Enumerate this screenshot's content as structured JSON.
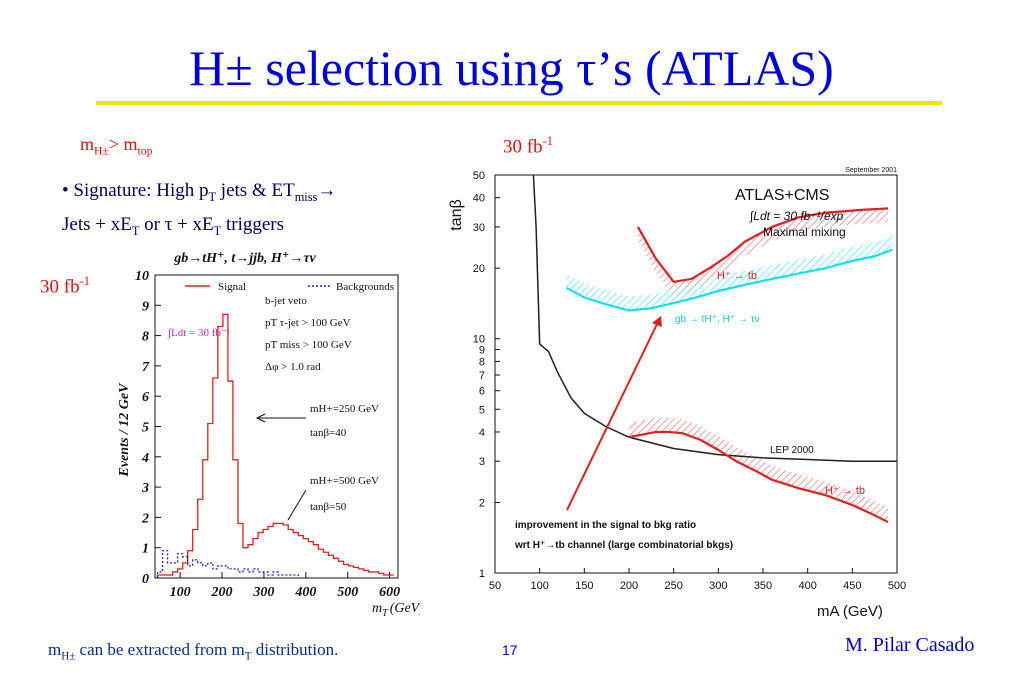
{
  "slide": {
    "title": "H± selection using τ’s (ATLAS)",
    "condition": {
      "m_sub": "H±",
      "gt": "> m",
      "top_sub": "top"
    },
    "signature": {
      "line1_a": "• Signature: High p",
      "line1_b": "T",
      "line1_c": " jets & ET",
      "line1_d": "miss",
      "line1_e": "→",
      "line2_a": "Jets + xE",
      "line2_b": "T",
      "line2_c": " or  τ + xE",
      "line2_d": "T",
      "line2_e": " triggers"
    },
    "lumi_left": {
      "text": "30 fb",
      "sup": "-1"
    },
    "lumi_right": {
      "text": "30 fb",
      "sup": "-1"
    },
    "footer": {
      "a": "m",
      "b": "H±",
      "c": " can be extracted from m",
      "d": "T",
      "e": " distribution."
    },
    "page_number": "17",
    "author": "M. Pilar Casado"
  },
  "left_plot": {
    "process": "gb→tH⁺, t→jjb, H⁺→τν",
    "ylabel": "Events / 12 GeV",
    "xlabel": "m",
    "xlabel_sub": "T",
    "xlabel_unit": "(GeV)",
    "legend_signal": "Signal",
    "legend_bkg": "Backgrounds",
    "lumi_box": "∫Ldt = 30 fb⁻¹",
    "cuts": [
      "b-jet veto",
      "pT τ-jet > 100 GeV",
      "pT miss > 100 GeV",
      "Δφ > 1.0 rad"
    ],
    "ann1": [
      "mH+=250 GeV",
      "tanβ=40"
    ],
    "ann2": [
      "mH+=500 GeV",
      "tanβ=50"
    ],
    "colors": {
      "signal": "#e02020",
      "background": "#2020d0"
    }
  },
  "right_plot": {
    "stamp": "September 2001",
    "header1": "ATLAS+CMS",
    "header2": "∫Ldt = 30 fb⁻¹/exp",
    "header3": "Maximal mixing",
    "ylabel": "tanβ",
    "xlabel": "mA (GeV)",
    "lbl_htb_upper": "H⁺ → tb",
    "lbl_cyan": "gb → tH⁺, H⁺ → τν",
    "lbl_lep": "LEP 2000",
    "lbl_htb_lower": "H⁺ → tb",
    "note1": "improvement in the signal to bkg ratio",
    "note2": "wrt H⁺→tb channel (large combinatorial bkgs)",
    "colors": {
      "htb": "#e02020",
      "cyan": "#10e0f0",
      "lep": "#202020",
      "arrow": "#e02020"
    }
  },
  "chart_data": [
    {
      "type": "line",
      "title": "",
      "xlabel": "mT (GeV)",
      "ylabel": "Events / 12 GeV",
      "xlim": [
        40,
        620
      ],
      "ylim": [
        0,
        10
      ],
      "xticks": [
        "100",
        "200",
        "300",
        "400",
        "500",
        "600"
      ],
      "yticks": [
        "0",
        "1",
        "2",
        "3",
        "4",
        "5",
        "6",
        "7",
        "8",
        "9",
        "10"
      ],
      "series": [
        {
          "name": "Signal",
          "x": [
            52,
            64,
            76,
            88,
            100,
            112,
            124,
            136,
            148,
            160,
            172,
            184,
            196,
            208,
            220,
            232,
            244,
            256,
            268,
            280,
            292,
            304,
            316,
            328,
            340,
            352,
            364,
            376,
            388,
            400,
            412,
            424,
            436,
            448,
            460,
            472,
            484,
            496,
            508,
            520,
            532,
            544,
            556,
            568,
            580,
            592,
            604
          ],
          "values": [
            0.1,
            0.1,
            0.1,
            0.2,
            0.3,
            0.5,
            0.9,
            1.6,
            2.6,
            3.9,
            5.1,
            6.6,
            8.3,
            8.7,
            6.5,
            3.9,
            1.8,
            1.0,
            1.1,
            1.3,
            1.5,
            1.6,
            1.7,
            1.8,
            1.8,
            1.75,
            1.6,
            1.5,
            1.4,
            1.3,
            1.2,
            1.1,
            0.95,
            0.85,
            0.75,
            0.65,
            0.55,
            0.45,
            0.4,
            0.35,
            0.3,
            0.25,
            0.2,
            0.2,
            0.15,
            0.1,
            0.1
          ]
        },
        {
          "name": "Backgrounds",
          "x": [
            52,
            64,
            76,
            88,
            100,
            112,
            124,
            136,
            148,
            160,
            172,
            184,
            196,
            208,
            220,
            232,
            244,
            256,
            268,
            280,
            292,
            304,
            316,
            328,
            340,
            352,
            364,
            376,
            388,
            400
          ],
          "values": [
            0.2,
            0.9,
            0.5,
            0.5,
            0.8,
            0.7,
            0.4,
            0.6,
            0.5,
            0.4,
            0.5,
            0.3,
            0.4,
            0.4,
            0.3,
            0.3,
            0.2,
            0.3,
            0.2,
            0.3,
            0.2,
            0.2,
            0.1,
            0.2,
            0.1,
            0.1,
            0.1,
            0.1,
            0.0,
            0.0
          ]
        }
      ]
    },
    {
      "type": "line",
      "title": "",
      "xlabel": "mA (GeV)",
      "ylabel": "tanβ",
      "xlim": [
        50,
        500
      ],
      "ylim": [
        1,
        50
      ],
      "yscale": "log",
      "xticks": [
        "50",
        "100",
        "150",
        "200",
        "250",
        "300",
        "350",
        "400",
        "450",
        "500"
      ],
      "yticks": [
        "1",
        "2",
        "3",
        "4",
        "5",
        "6",
        "7",
        "8",
        "9",
        "10",
        "20",
        "30",
        "40",
        "50"
      ],
      "series": [
        {
          "name": "H⁺ → tb (upper)",
          "x": [
            210,
            230,
            250,
            270,
            290,
            310,
            330,
            360,
            390,
            420,
            460,
            490
          ],
          "values": [
            30,
            22,
            17.5,
            18,
            20,
            22.5,
            26,
            30,
            33,
            34.5,
            35.5,
            36
          ]
        },
        {
          "name": "gb → tH⁺, H⁺ → τν",
          "x": [
            130,
            150,
            175,
            200,
            225,
            250,
            275,
            300,
            330,
            360,
            390,
            420,
            450,
            475,
            495
          ],
          "values": [
            16.5,
            15,
            14,
            13.2,
            13.5,
            14.2,
            15,
            16,
            17,
            18,
            19,
            20,
            21.5,
            22.5,
            24
          ]
        },
        {
          "name": "LEP 2000",
          "x": [
            93,
            96,
            100,
            110,
            120,
            135,
            150,
            175,
            200,
            250,
            300,
            350,
            400,
            450,
            500
          ],
          "values": [
            50,
            30,
            9.5,
            8.8,
            7.2,
            5.6,
            4.8,
            4.2,
            3.8,
            3.4,
            3.2,
            3.1,
            3.05,
            3.0,
            3.0
          ]
        },
        {
          "name": "H⁺ → tb (lower)",
          "x": [
            200,
            215,
            230,
            245,
            260,
            280,
            300,
            320,
            340,
            360,
            390,
            420,
            450,
            470,
            490
          ],
          "values": [
            3.8,
            3.9,
            4.0,
            4.0,
            3.95,
            3.7,
            3.35,
            3.0,
            2.75,
            2.5,
            2.3,
            2.15,
            1.95,
            1.8,
            1.65
          ]
        }
      ]
    }
  ]
}
